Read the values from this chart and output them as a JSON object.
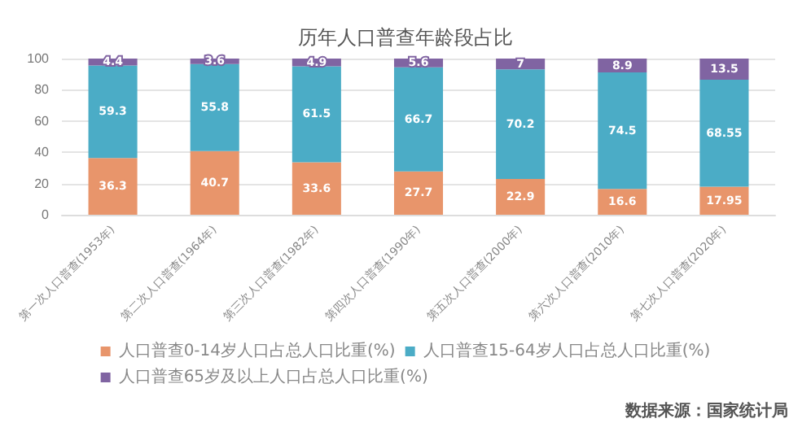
{
  "chart_data": {
    "type": "bar",
    "title": "历年人口普查年龄段占比",
    "categories": [
      "第一次人口普查(1953年)",
      "第二次人口普查(1964年)",
      "第三次人口普查(1982年)",
      "第四次人口普查(1990年)",
      "第五次人口普查(2000年)",
      "第六次人口普查(2010年)",
      "第七次人口普查(2020年)"
    ],
    "series": [
      {
        "name": "人口普查0-14岁人口占总人口比重(%)",
        "color": "#e8956b",
        "values": [
          36.3,
          40.7,
          33.6,
          27.7,
          22.9,
          16.6,
          17.95
        ]
      },
      {
        "name": "人口普查15-64岁人口占总人口比重(%)",
        "color": "#4bacc6",
        "values": [
          59.3,
          55.8,
          61.5,
          66.7,
          70.2,
          74.5,
          68.55
        ]
      },
      {
        "name": "人口普查65岁及以上人口占总人口比重(%)",
        "color": "#8064a2",
        "values": [
          4.4,
          3.6,
          4.9,
          5.6,
          7,
          8.9,
          13.5
        ]
      }
    ],
    "stacked": true,
    "data_labels": true,
    "ylim": [
      0,
      100
    ],
    "yticks": [
      0,
      20,
      40,
      60,
      80,
      100
    ],
    "grid": "y",
    "legend": "bottom",
    "annotations": [
      "数据来源：国家统计局"
    ]
  }
}
